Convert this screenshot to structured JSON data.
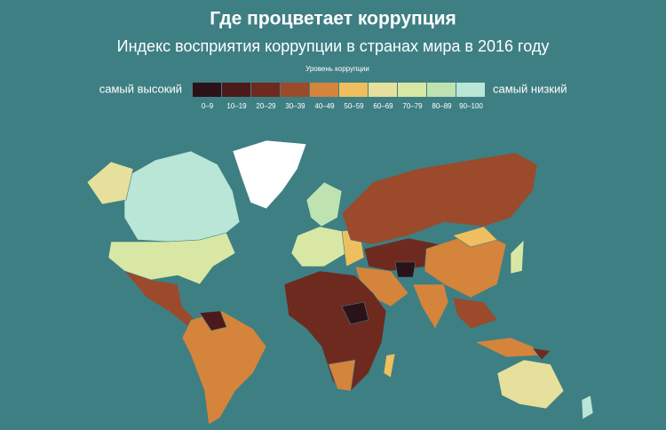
{
  "header": {
    "title": "Где процветает коррупция",
    "subtitle": "Индекс восприятия коррупции в странах мира в 2016 году"
  },
  "legend": {
    "title": "Уровень коррупции",
    "high_label": "самый высокий",
    "low_label": "самый низкий",
    "bins": [
      {
        "label": "0–9",
        "color": "#2a1218"
      },
      {
        "label": "10–19",
        "color": "#4d1a1c"
      },
      {
        "label": "20–29",
        "color": "#6e2a1f"
      },
      {
        "label": "30–39",
        "color": "#9b4a2b"
      },
      {
        "label": "40–49",
        "color": "#d4843b"
      },
      {
        "label": "50–59",
        "color": "#efbf5f"
      },
      {
        "label": "60–69",
        "color": "#e6e09c"
      },
      {
        "label": "70–79",
        "color": "#d8e8a4"
      },
      {
        "label": "80–89",
        "color": "#bfe3b0"
      },
      {
        "label": "90–100",
        "color": "#b9e6d6"
      }
    ]
  }
}
